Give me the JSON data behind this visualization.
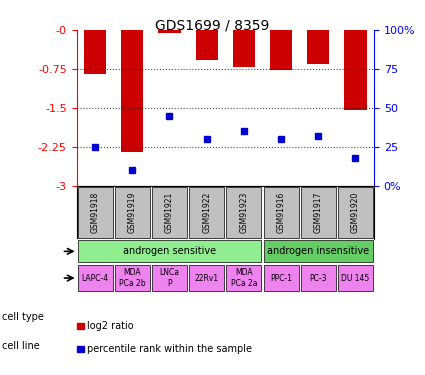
{
  "title": "GDS1699 / 8359",
  "samples": [
    "GSM91918",
    "GSM91919",
    "GSM91921",
    "GSM91922",
    "GSM91923",
    "GSM91916",
    "GSM91917",
    "GSM91920"
  ],
  "log2_ratios": [
    -0.85,
    -2.35,
    -0.05,
    -0.58,
    -0.72,
    -0.78,
    -0.65,
    -1.55
  ],
  "percentile_ranks": [
    25,
    10,
    45,
    30,
    35,
    30,
    32,
    18
  ],
  "cell_types": [
    {
      "label": "androgen sensitive",
      "span": [
        0,
        5
      ],
      "color": "#90EE90"
    },
    {
      "label": "androgen insensitive",
      "span": [
        5,
        8
      ],
      "color": "#66CC66"
    }
  ],
  "cell_lines": [
    {
      "label": "LAPC-4",
      "span": [
        0,
        1
      ]
    },
    {
      "label": "MDA\nPCa 2b",
      "span": [
        1,
        2
      ]
    },
    {
      "label": "LNCa\nP",
      "span": [
        2,
        3
      ]
    },
    {
      "label": "22Rv1",
      "span": [
        3,
        4
      ]
    },
    {
      "label": "MDA\nPCa 2a",
      "span": [
        4,
        5
      ]
    },
    {
      "label": "PPC-1",
      "span": [
        5,
        6
      ]
    },
    {
      "label": "PC-3",
      "span": [
        6,
        7
      ]
    },
    {
      "label": "DU 145",
      "span": [
        7,
        8
      ]
    }
  ],
  "cell_line_color": "#EE82EE",
  "sample_bg_color": "#C0C0C0",
  "ylim": [
    -3,
    0
  ],
  "yticks": [
    0,
    -0.75,
    -1.5,
    -2.25,
    -3
  ],
  "ytick_labels": [
    "-0",
    "-0.75",
    "-1.5",
    "-2.25",
    "-3"
  ],
  "right_yticks": [
    0,
    25,
    50,
    75,
    100
  ],
  "right_ytick_labels": [
    "0%",
    "25",
    "50",
    "75",
    "100%"
  ],
  "bar_color": "#CC0000",
  "dot_color": "#0000CC",
  "legend_items": [
    {
      "label": "log2 ratio",
      "color": "#CC0000"
    },
    {
      "label": "percentile rank within the sample",
      "color": "#0000CC"
    }
  ]
}
